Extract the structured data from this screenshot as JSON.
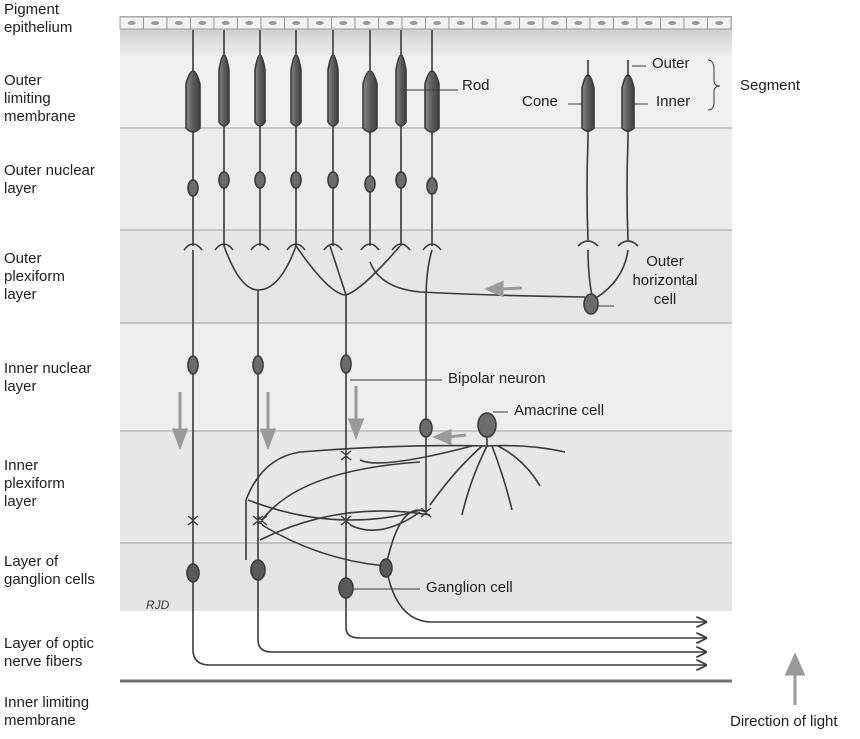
{
  "layers": [
    "Pigment epithelium",
    "Outer limiting membrane",
    "Outer nuclear layer",
    "Outer plexiform layer",
    "Inner nuclear layer",
    "Inner plexiform layer",
    "Layer of ganglion cells",
    "Layer of optic nerve fibers",
    "Inner limiting membrane"
  ],
  "labels": {
    "rod": "Rod",
    "cone": "Cone",
    "outer": "Outer",
    "inner": "Inner",
    "segment": "Segment",
    "outer_horizontal_cell": "Outer horizontal cell",
    "bipolar_neuron": "Bipolar neuron",
    "amacrine_cell": "Amacrine cell",
    "ganglion_cell": "Ganglion cell",
    "direction_of_light": "Direction of light",
    "signature": "RJD"
  },
  "colors": {
    "band_light": "#eeeeee",
    "band_dark": "#e3e3e3",
    "line": "#3a3a3a",
    "cell_fill": "#6c6c6c",
    "arrow_gray": "#9a9a9a",
    "layer_line": "#9d9d9d"
  }
}
